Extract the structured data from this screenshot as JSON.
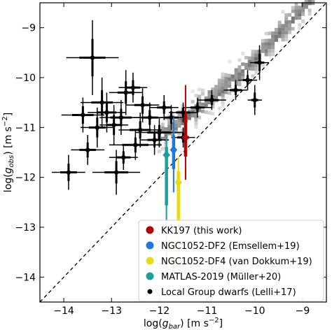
{
  "chart_data": {
    "type": "scatter",
    "xlabel_parts": [
      "log(",
      "g",
      "bar",
      ") [m s",
      "−2",
      "]"
    ],
    "ylabel_parts": [
      "log(",
      "g",
      "obs",
      ") [m s",
      "−2",
      "]"
    ],
    "xlim": [
      -14.5,
      -8.5
    ],
    "ylim": [
      -14.5,
      -8.5
    ],
    "xticks": [
      -14,
      -13,
      -12,
      -11,
      -10,
      -9
    ],
    "yticks": [
      -14,
      -13,
      -12,
      -11,
      -10,
      -9
    ],
    "tick_labels": [
      "−14",
      "−13",
      "−12",
      "−11",
      "−10",
      "−9"
    ],
    "one_to_one_line": true,
    "grid": false,
    "legend_position": "lower-right",
    "legend": [
      {
        "label": "KK197 (this work)",
        "color": "#b30000",
        "marker": "diamond"
      },
      {
        "label": "NGC1052-DF2 (Emsellem+19)",
        "color": "#1f77e0",
        "marker": "diamond"
      },
      {
        "label": "NGC1052-DF4 (van Dokkum+19)",
        "color": "#e6dc10",
        "marker": "diamond"
      },
      {
        "label": "MATLAS-2019 (Müller+20)",
        "color": "#17a2a0",
        "marker": "diamond"
      },
      {
        "label": "Local Group dwarfs (Lelli+17)",
        "color": "#000000",
        "marker": "circle"
      }
    ],
    "highlighted": [
      {
        "name": "KK197 (this work)",
        "color": "#b30000",
        "x": -11.45,
        "y": -11.2,
        "y_low": -12.05,
        "y_high": -10.15
      },
      {
        "name": "NGC1052-DF2 (Emsellem+19)",
        "color": "#1f77e0",
        "x": -11.7,
        "y": -11.45,
        "y_low": -12.3,
        "y_high": -10.8
      },
      {
        "name": "NGC1052-DF4 (van Dokkum+19)",
        "color": "#e6dc10",
        "x": -11.6,
        "y": -12.1,
        "y_low": -13.85,
        "y_high": -11.6
      },
      {
        "name": "MATLAS-2019 (Müller+20)",
        "color": "#17a2a0",
        "x": -11.85,
        "y": -11.55,
        "y_low": -13.8,
        "y_high": -11.2
      }
    ],
    "local_group_dwarfs": [
      {
        "x": -12.4,
        "y": -11.05,
        "xerr": 0.45,
        "yerr": 0.35
      },
      {
        "x": -12.5,
        "y": -11.35,
        "xerr": 0.55,
        "yerr": 0.3
      },
      {
        "x": -12.0,
        "y": -11.1,
        "xerr": 0.5,
        "yerr": 0.3
      },
      {
        "x": -11.9,
        "y": -10.6,
        "xerr": 0.3,
        "yerr": 0.25
      },
      {
        "x": -13.4,
        "y": -9.6,
        "xerr": 0.55,
        "yerr": 0.75
      },
      {
        "x": -13.2,
        "y": -10.5,
        "xerr": 0.45,
        "yerr": 0.5
      },
      {
        "x": -12.7,
        "y": -10.3,
        "xerr": 0.35,
        "yerr": 0.45
      },
      {
        "x": -12.8,
        "y": -10.8,
        "xerr": 0.45,
        "yerr": 0.35
      },
      {
        "x": -13.1,
        "y": -10.7,
        "xerr": 0.4,
        "yerr": 0.4
      },
      {
        "x": -13.6,
        "y": -10.75,
        "xerr": 0.45,
        "yerr": 0.35
      },
      {
        "x": -13.3,
        "y": -11.0,
        "xerr": 0.35,
        "yerr": 0.4
      },
      {
        "x": -12.75,
        "y": -11.6,
        "xerr": 0.3,
        "yerr": 0.25
      },
      {
        "x": -12.9,
        "y": -11.9,
        "xerr": 0.5,
        "yerr": 0.45
      },
      {
        "x": -13.9,
        "y": -11.9,
        "xerr": 0.35,
        "yerr": 0.35
      },
      {
        "x": -13.5,
        "y": -11.45,
        "xerr": 0.35,
        "yerr": 0.3
      },
      {
        "x": -12.35,
        "y": -10.55,
        "xerr": 0.35,
        "yerr": 0.35
      },
      {
        "x": -12.55,
        "y": -10.2,
        "xerr": 0.3,
        "yerr": 0.3
      },
      {
        "x": -12.1,
        "y": -11.25,
        "xerr": 0.3,
        "yerr": 0.3
      },
      {
        "x": -11.75,
        "y": -10.8,
        "xerr": 0.3,
        "yerr": 0.25
      },
      {
        "x": -11.5,
        "y": -10.7,
        "xerr": 0.3,
        "yerr": 0.2
      },
      {
        "x": -12.95,
        "y": -10.95,
        "xerr": 0.3,
        "yerr": 0.4
      },
      {
        "x": -11.2,
        "y": -10.6,
        "xerr": 0.3,
        "yerr": 0.2
      },
      {
        "x": -10.9,
        "y": -10.45,
        "xerr": 0.3,
        "yerr": 0.2
      },
      {
        "x": -10.4,
        "y": -10.25,
        "xerr": 0.25,
        "yerr": 0.2
      },
      {
        "x": -10.15,
        "y": -10.05,
        "xerr": 0.2,
        "yerr": 0.2
      },
      {
        "x": -9.9,
        "y": -9.7,
        "xerr": 0.2,
        "yerr": 0.35
      },
      {
        "x": -10.0,
        "y": -10.45,
        "xerr": 0.15,
        "yerr": 0.3
      },
      {
        "x": -12.2,
        "y": -10.8,
        "xerr": 0.35,
        "yerr": 0.3
      },
      {
        "x": -11.5,
        "y": -11.2,
        "xerr": 0.25,
        "yerr": 0.2
      }
    ]
  }
}
